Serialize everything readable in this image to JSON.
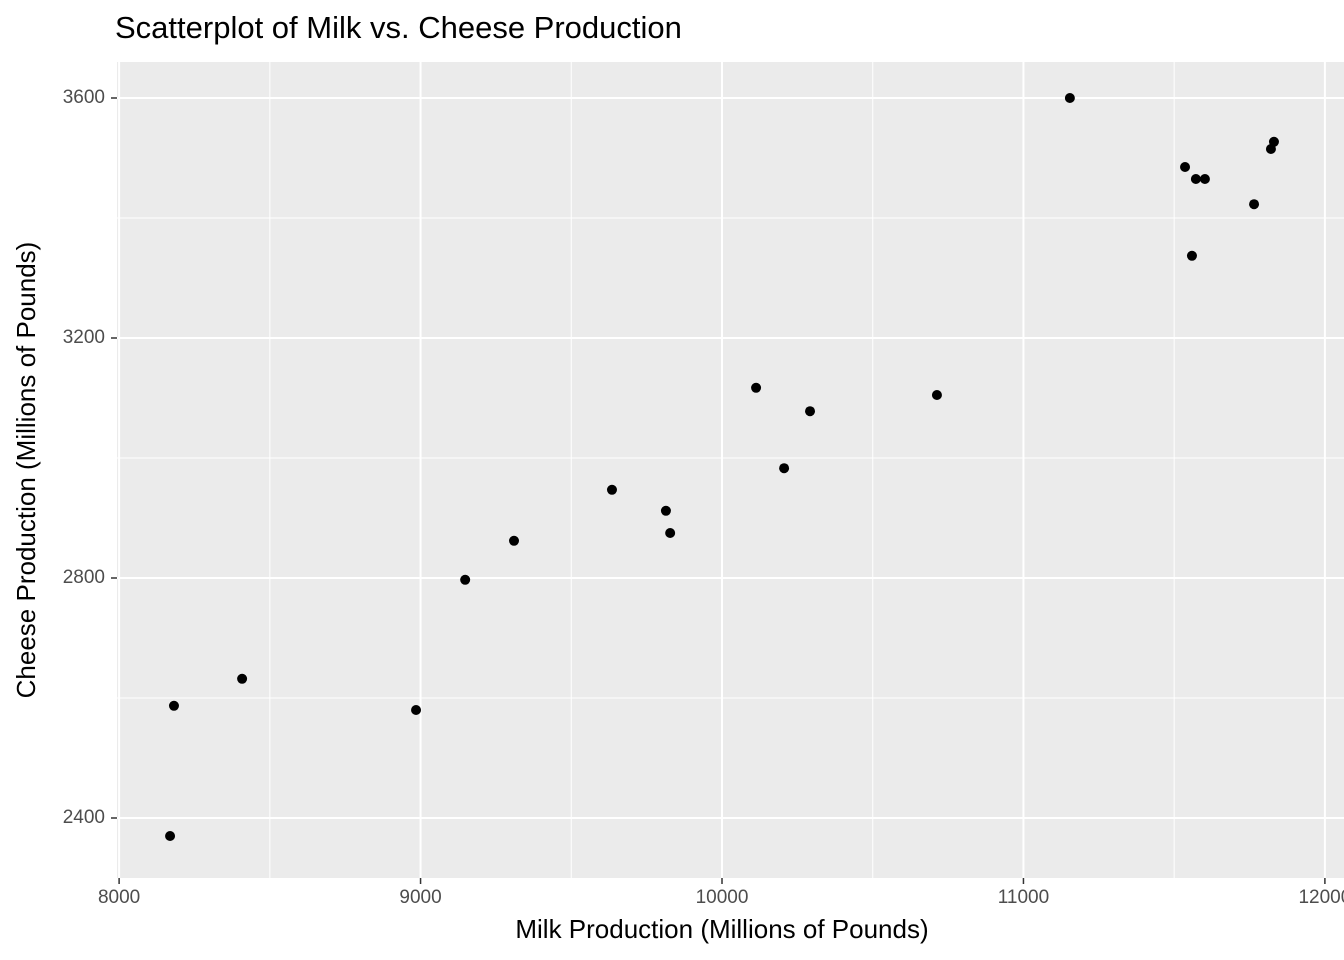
{
  "chart_data": {
    "type": "scatter",
    "title": "Scatterplot of Milk vs. Cheese Production",
    "x_label": "Milk Production (Millions of Pounds)",
    "y_label": "Cheese Production (Millions of Pounds)",
    "x": [
      8169,
      8182,
      8408,
      8985,
      9148,
      9310,
      9635,
      9814,
      9828,
      10113,
      10206,
      10292,
      10713,
      11154,
      11536,
      11559,
      11572,
      11602,
      11765,
      11821,
      11831
    ],
    "y": [
      2370,
      2587,
      2632,
      2580,
      2797,
      2862,
      2947,
      2912,
      2875,
      3117,
      2983,
      3078,
      3105,
      3600,
      3485,
      3337,
      3465,
      3465,
      3423,
      3515,
      3527
    ],
    "color": "#000000",
    "xlim": [
      7993,
      12070
    ],
    "ylim": [
      2300,
      3660
    ],
    "xticks": [
      8000,
      9000,
      10000,
      11000,
      12000
    ],
    "yticks": [
      2400,
      2800,
      3200,
      3600
    ],
    "x_minor_grid": [
      8500,
      9500,
      10500,
      11500
    ],
    "y_minor_grid": [
      2600,
      3000,
      3400
    ],
    "grid": true
  }
}
